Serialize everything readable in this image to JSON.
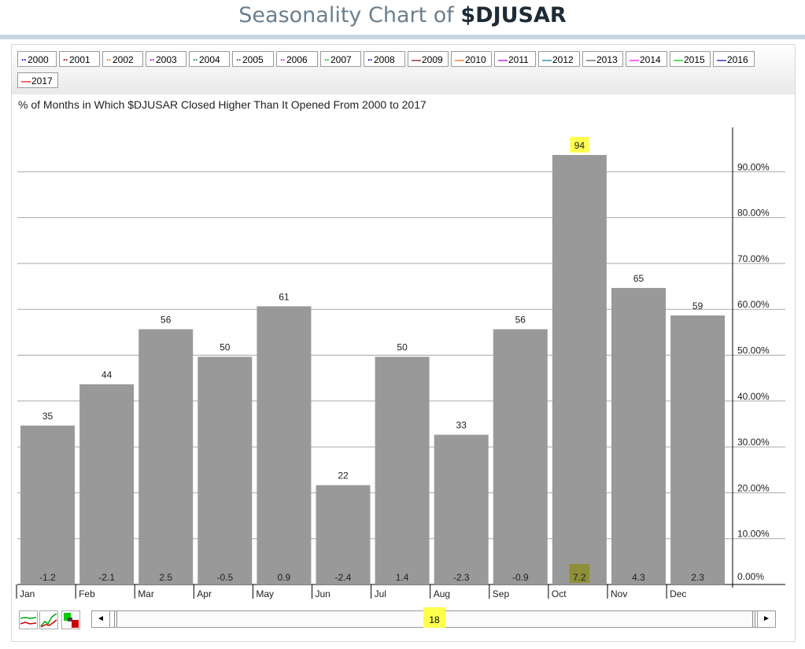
{
  "header": {
    "title_prefix": "Seasonality Chart of ",
    "title_symbol": "$DJUSAR"
  },
  "legend": [
    {
      "label": "2000",
      "color": "#0000cc",
      "dash": "··"
    },
    {
      "label": "2001",
      "color": "#800000",
      "dash": "··"
    },
    {
      "label": "2002",
      "color": "#ff6600",
      "dash": "··"
    },
    {
      "label": "2003",
      "color": "#9900cc",
      "dash": "··"
    },
    {
      "label": "2004",
      "color": "#008080",
      "dash": "··"
    },
    {
      "label": "2005",
      "color": "#555555",
      "dash": "··"
    },
    {
      "label": "2006",
      "color": "#ff00ff",
      "dash": "··"
    },
    {
      "label": "2007",
      "color": "#00cc00",
      "dash": "··"
    },
    {
      "label": "2008",
      "color": "#000099",
      "dash": "··"
    },
    {
      "label": "2009",
      "color": "#800000",
      "dash": "—"
    },
    {
      "label": "2010",
      "color": "#ff6600",
      "dash": "—"
    },
    {
      "label": "2011",
      "color": "#9900cc",
      "dash": "—"
    },
    {
      "label": "2012",
      "color": "#008080",
      "dash": "—"
    },
    {
      "label": "2013",
      "color": "#555555",
      "dash": "—"
    },
    {
      "label": "2014",
      "color": "#ff00ff",
      "dash": "—"
    },
    {
      "label": "2015",
      "color": "#00cc00",
      "dash": "—"
    },
    {
      "label": "2016",
      "color": "#0000cc",
      "dash": "—"
    },
    {
      "label": "2017",
      "color": "#ff0000",
      "dash": "—"
    }
  ],
  "chart_data": {
    "type": "bar",
    "title": "% of Months in Which $DJUSAR Closed Higher Than It Opened From 2000 to 2017",
    "categories": [
      "Jan",
      "Feb",
      "Mar",
      "Apr",
      "May",
      "Jun",
      "Jul",
      "Aug",
      "Sep",
      "Oct",
      "Nov",
      "Dec"
    ],
    "series": [
      {
        "values": [
          35,
          44,
          56,
          50,
          61,
          22,
          50,
          33,
          56,
          94,
          65,
          59
        ]
      }
    ],
    "value_labels": [
      "35",
      "44",
      "56",
      "50",
      "61",
      "22",
      "50",
      "33",
      "56",
      "94",
      "65",
      "59"
    ],
    "avg_change_labels": [
      "-1.2",
      "-2.1",
      "2.5",
      "-0.5",
      "0.9",
      "-2.4",
      "1.4",
      "-2.3",
      "-0.9",
      "7.2",
      "4.3",
      "2.3"
    ],
    "highlighted": "Oct",
    "ylim": [
      0,
      100
    ],
    "yticks": [
      "0.00%",
      "10.00%",
      "20.00%",
      "30.00%",
      "40.00%",
      "50.00%",
      "60.00%",
      "70.00%",
      "80.00%",
      "90.00%"
    ],
    "y_axis_side": "right",
    "grid": true,
    "bar_color": "#999999",
    "highlight_color": "#ffff4d"
  },
  "scrollbar": {
    "value": "18",
    "left_arrow": "◄",
    "right_arrow": "►"
  },
  "icons": [
    "line-chart-icon",
    "performance-chart-icon",
    "seasonality-chart-icon"
  ]
}
